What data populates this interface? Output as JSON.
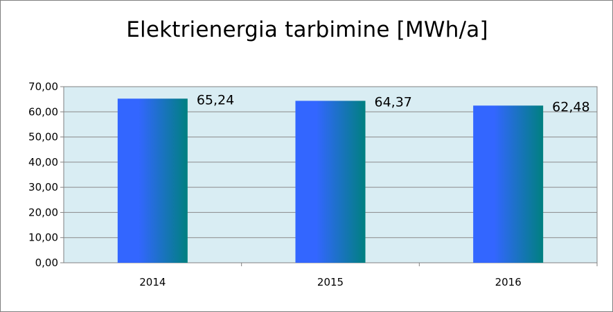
{
  "chart_data": {
    "type": "bar",
    "title": "Elektrienergia tarbimine [MWh/a]",
    "xlabel": "",
    "ylabel": "",
    "categories": [
      "2014",
      "2015",
      "2016"
    ],
    "values": [
      65.24,
      64.37,
      62.48
    ],
    "data_labels": [
      "65,24",
      "64,37",
      "62,48"
    ],
    "ylim": [
      0,
      70
    ],
    "yticks": [
      0,
      10,
      20,
      30,
      40,
      50,
      60,
      70
    ],
    "ytick_labels": [
      "0,00",
      "10,00",
      "20,00",
      "30,00",
      "40,00",
      "50,00",
      "60,00",
      "70,00"
    ],
    "grid": true,
    "legend": "none",
    "colors": {
      "plot_background": "#d9edf3",
      "gridline": "#8a8a8a",
      "bar_gradient_start": "#3366ff",
      "bar_gradient_end": "#008080"
    }
  }
}
